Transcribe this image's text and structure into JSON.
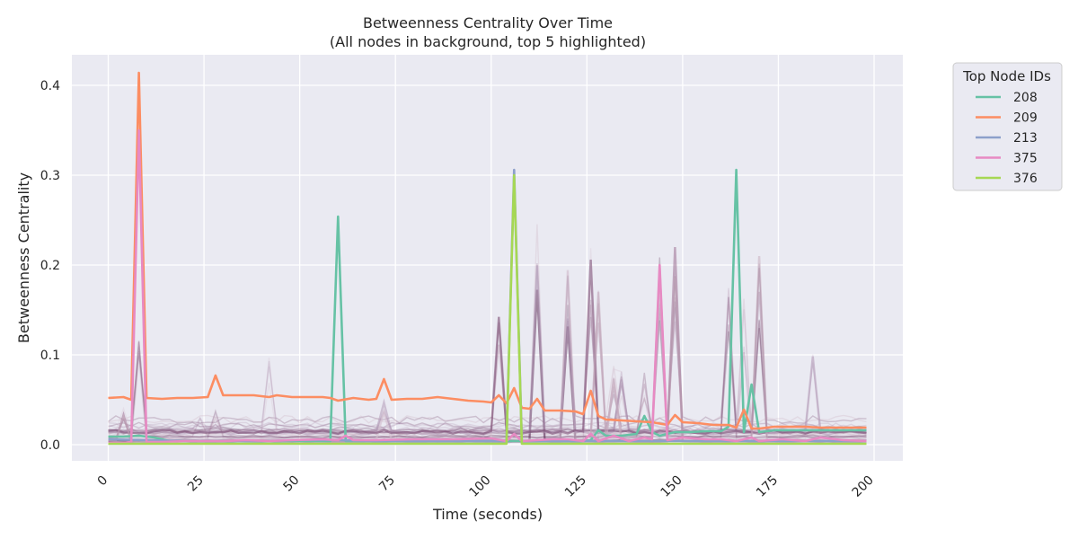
{
  "chart_data": {
    "type": "line",
    "title": "Betweenness Centrality Over Time",
    "subtitle": "(All nodes in background, top 5 highlighted)",
    "xlabel": "Time (seconds)",
    "ylabel": "Betweenness Centrality",
    "xlim": [
      -9.5,
      207.5
    ],
    "ylim": [
      -0.018,
      0.434
    ],
    "xticks": [
      0,
      25,
      50,
      75,
      100,
      125,
      150,
      175,
      200
    ],
    "yticks": [
      0.0,
      0.1,
      0.2,
      0.3,
      0.4
    ],
    "xtick_labels": [
      "0",
      "25",
      "50",
      "75",
      "100",
      "125",
      "150",
      "175",
      "200"
    ],
    "ytick_labels": [
      "0.0",
      "0.1",
      "0.2",
      "0.3",
      "0.4"
    ],
    "grid": true,
    "background_color": "#eaeaf2",
    "legend": {
      "title": "Top Node IDs",
      "placement": "outside-top-right",
      "entries": [
        "208",
        "209",
        "213",
        "375",
        "376"
      ]
    },
    "series": [
      {
        "name": "208",
        "color": "#66c2a5",
        "x": [
          0,
          4,
          8,
          12,
          16,
          20,
          24,
          28,
          32,
          36,
          40,
          44,
          48,
          52,
          56,
          58,
          60,
          62,
          64,
          68,
          72,
          76,
          80,
          84,
          88,
          92,
          96,
          100,
          104,
          106,
          108,
          112,
          116,
          120,
          124,
          126,
          128,
          130,
          134,
          138,
          140,
          142,
          144,
          148,
          152,
          156,
          160,
          162,
          164,
          166,
          168,
          170,
          174,
          178,
          182,
          186,
          190,
          194,
          198
        ],
        "y": [
          0.009,
          0.009,
          0.01,
          0.008,
          0.004,
          0.004,
          0.004,
          0.004,
          0.004,
          0.004,
          0.004,
          0.004,
          0.004,
          0.004,
          0.004,
          0.004,
          0.254,
          0.004,
          0.004,
          0.004,
          0.004,
          0.004,
          0.004,
          0.004,
          0.004,
          0.004,
          0.004,
          0.004,
          0.004,
          0.004,
          0.004,
          0.004,
          0.004,
          0.004,
          0.004,
          0.005,
          0.016,
          0.01,
          0.01,
          0.012,
          0.032,
          0.014,
          0.01,
          0.014,
          0.014,
          0.015,
          0.015,
          0.02,
          0.306,
          0.014,
          0.067,
          0.014,
          0.016,
          0.016,
          0.016,
          0.016,
          0.016,
          0.016,
          0.016
        ]
      },
      {
        "name": "209",
        "color": "#fc8d62",
        "x": [
          0,
          4,
          6,
          8,
          10,
          14,
          18,
          22,
          26,
          28,
          30,
          34,
          38,
          42,
          44,
          48,
          52,
          56,
          58,
          60,
          64,
          68,
          70,
          72,
          74,
          78,
          82,
          86,
          90,
          94,
          98,
          100,
          102,
          104,
          106,
          108,
          110,
          112,
          114,
          118,
          122,
          124,
          126,
          128,
          130,
          134,
          138,
          142,
          146,
          148,
          150,
          154,
          158,
          162,
          164,
          166,
          168,
          170,
          174,
          178,
          182,
          186,
          190,
          194,
          198
        ],
        "y": [
          0.052,
          0.053,
          0.05,
          0.414,
          0.052,
          0.051,
          0.052,
          0.052,
          0.053,
          0.077,
          0.055,
          0.055,
          0.055,
          0.053,
          0.055,
          0.053,
          0.053,
          0.053,
          0.052,
          0.049,
          0.052,
          0.05,
          0.051,
          0.073,
          0.05,
          0.051,
          0.051,
          0.053,
          0.051,
          0.049,
          0.048,
          0.047,
          0.055,
          0.046,
          0.063,
          0.041,
          0.04,
          0.051,
          0.038,
          0.038,
          0.037,
          0.034,
          0.06,
          0.032,
          0.028,
          0.027,
          0.026,
          0.025,
          0.022,
          0.033,
          0.025,
          0.024,
          0.022,
          0.022,
          0.019,
          0.039,
          0.018,
          0.018,
          0.02,
          0.02,
          0.02,
          0.019,
          0.019,
          0.019,
          0.019
        ]
      },
      {
        "name": "213",
        "color": "#8da0cb",
        "x": [
          0,
          10,
          20,
          30,
          40,
          50,
          60,
          70,
          80,
          90,
          100,
          104,
          106,
          108,
          112,
          120,
          130,
          140,
          150,
          160,
          170,
          180,
          190,
          198
        ],
        "y": [
          0.006,
          0.005,
          0.004,
          0.004,
          0.004,
          0.005,
          0.005,
          0.004,
          0.004,
          0.004,
          0.004,
          0.004,
          0.306,
          0.004,
          0.004,
          0.004,
          0.004,
          0.004,
          0.004,
          0.004,
          0.004,
          0.004,
          0.004,
          0.004
        ]
      },
      {
        "name": "375",
        "color": "#e78ac3",
        "x": [
          0,
          4,
          6,
          8,
          10,
          14,
          20,
          26,
          30,
          36,
          42,
          48,
          56,
          60,
          62,
          64,
          70,
          80,
          90,
          100,
          104,
          106,
          108,
          112,
          116,
          120,
          124,
          126,
          128,
          132,
          136,
          140,
          142,
          144,
          146,
          150,
          156,
          160,
          164,
          168,
          170,
          176,
          182,
          186,
          192,
          198
        ],
        "y": [
          0.002,
          0.002,
          0.003,
          0.35,
          0.003,
          0.003,
          0.004,
          0.004,
          0.004,
          0.005,
          0.004,
          0.005,
          0.006,
          0.005,
          0.01,
          0.005,
          0.005,
          0.006,
          0.006,
          0.007,
          0.004,
          0.012,
          0.004,
          0.005,
          0.006,
          0.006,
          0.004,
          0.012,
          0.004,
          0.01,
          0.004,
          0.008,
          0.006,
          0.2,
          0.005,
          0.008,
          0.006,
          0.006,
          0.004,
          0.008,
          0.004,
          0.006,
          0.004,
          0.008,
          0.005,
          0.004
        ]
      },
      {
        "name": "376",
        "color": "#a6d854",
        "x": [
          0,
          10,
          20,
          30,
          40,
          50,
          60,
          70,
          80,
          90,
          100,
          104,
          106,
          108,
          112,
          120,
          130,
          140,
          150,
          160,
          170,
          180,
          190,
          198
        ],
        "y": [
          0.001,
          0.001,
          0.001,
          0.001,
          0.001,
          0.001,
          0.001,
          0.001,
          0.001,
          0.001,
          0.001,
          0.001,
          0.3,
          0.001,
          0.001,
          0.001,
          0.001,
          0.001,
          0.001,
          0.001,
          0.001,
          0.001,
          0.001,
          0.001
        ]
      }
    ]
  }
}
